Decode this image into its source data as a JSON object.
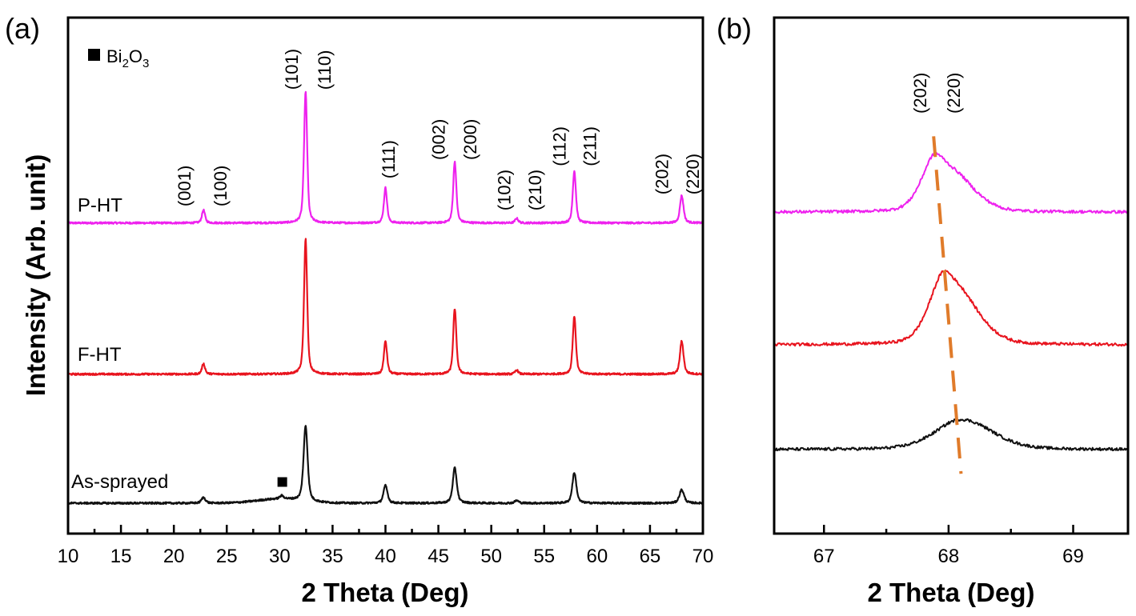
{
  "chart_data": [
    {
      "panel_label": "(a)",
      "type": "line",
      "xlabel": "2 Theta (Deg)",
      "ylabel": "Intensity (Arb. unit)",
      "xlim": [
        10,
        70
      ],
      "ylim": [
        0,
        100
      ],
      "xticks_major": [
        10,
        15,
        20,
        25,
        30,
        35,
        40,
        45,
        50,
        55,
        60,
        65,
        70
      ],
      "xticks_minor": [
        12.5,
        17.5,
        22.5,
        27.5,
        32.5,
        37.5,
        42.5,
        47.5,
        52.5,
        57.5,
        62.5,
        67.5
      ],
      "yticks": [],
      "grid": false,
      "legend": {
        "position": "top-left",
        "marker": "square",
        "label_main": "Bi",
        "sub1": "2",
        "label_mid": "O",
        "sub2": "3"
      },
      "series": [
        {
          "name": "P-HT",
          "color": "#ee22ee",
          "baseline": 60.2,
          "fwhm": 0.35,
          "label": {
            "text": "P-HT",
            "x": 10.9,
            "y": 62.4
          },
          "peaks": [
            {
              "x": 22.8,
              "h": 2.5
            },
            {
              "x": 32.45,
              "h": 25.4
            },
            {
              "x": 40.0,
              "h": 6.8
            },
            {
              "x": 46.55,
              "h": 11.9
            },
            {
              "x": 52.4,
              "h": 0.9
            },
            {
              "x": 57.85,
              "h": 10.1
            },
            {
              "x": 68.0,
              "h": 5.3
            }
          ],
          "humps": []
        },
        {
          "name": "F-HT",
          "color": "#e8141e",
          "baseline": 30.9,
          "fwhm": 0.35,
          "label": {
            "text": "F-HT",
            "x": 10.9,
            "y": 33.5
          },
          "peaks": [
            {
              "x": 22.8,
              "h": 2.0
            },
            {
              "x": 32.45,
              "h": 26.2
            },
            {
              "x": 40.0,
              "h": 6.4
            },
            {
              "x": 46.55,
              "h": 12.7
            },
            {
              "x": 52.4,
              "h": 0.8
            },
            {
              "x": 57.85,
              "h": 11.2
            },
            {
              "x": 68.0,
              "h": 6.4
            }
          ],
          "humps": []
        },
        {
          "name": "As-sprayed",
          "color": "#111111",
          "baseline": 5.9,
          "fwhm": 0.45,
          "label": {
            "text": "As-sprayed",
            "x": 10.3,
            "y": 8.8
          },
          "peaks": [
            {
              "x": 22.8,
              "h": 1.1
            },
            {
              "x": 30.2,
              "h": 0.6
            },
            {
              "x": 32.45,
              "h": 14.6
            },
            {
              "x": 40.0,
              "h": 3.4
            },
            {
              "x": 46.55,
              "h": 6.8
            },
            {
              "x": 52.4,
              "h": 0.5
            },
            {
              "x": 57.85,
              "h": 5.9
            },
            {
              "x": 68.0,
              "h": 2.6
            }
          ],
          "humps": [
            {
              "x": 30.0,
              "h": 0.8,
              "w": 5
            }
          ]
        }
      ],
      "markers": [
        {
          "type": "square",
          "x": 30.25,
          "y": 10.0,
          "meaning": "Bi2O3"
        }
      ],
      "annotations": [
        {
          "text": "(001)",
          "x": 20.97,
          "y": 63.4
        },
        {
          "text": "(100)",
          "x": 24.37,
          "y": 63.4
        },
        {
          "text": "(101)",
          "x": 31.1,
          "y": 86.0
        },
        {
          "text": "(110)",
          "x": 34.2,
          "y": 86.0
        },
        {
          "text": "(111)",
          "x": 40.26,
          "y": 68.8
        },
        {
          "text": "(002)",
          "x": 45.0,
          "y": 72.4
        },
        {
          "text": "(200)",
          "x": 47.97,
          "y": 72.4
        },
        {
          "text": "(102)",
          "x": 51.2,
          "y": 62.6
        },
        {
          "text": "(210)",
          "x": 54.1,
          "y": 62.6
        },
        {
          "text": "(112)",
          "x": 56.4,
          "y": 71.2
        },
        {
          "text": "(211)",
          "x": 59.3,
          "y": 71.2
        },
        {
          "text": "(202)",
          "x": 66.1,
          "y": 65.7
        },
        {
          "text": "(220)",
          "x": 69.0,
          "y": 65.7
        }
      ]
    },
    {
      "panel_label": "(b)",
      "type": "line",
      "xlabel": "2 Theta (Deg)",
      "ylabel": "",
      "xlim": [
        66.6,
        69.44
      ],
      "ylim": [
        0,
        100
      ],
      "xticks_major": [
        67,
        68,
        69
      ],
      "xticks_minor": [
        67.5,
        68.5
      ],
      "yticks": [],
      "grid": false,
      "series": [
        {
          "name": "P-HT",
          "color": "#ee22ee",
          "baseline": 62.3,
          "peaks": [
            {
              "x": 67.88,
              "h": 8.6,
              "w": 0.2
            },
            {
              "x": 68.08,
              "h": 6.0,
              "w": 0.3
            }
          ]
        },
        {
          "name": "F-HT",
          "color": "#e8141e",
          "baseline": 36.6,
          "peaks": [
            {
              "x": 67.95,
              "h": 10.8,
              "w": 0.22
            },
            {
              "x": 68.14,
              "h": 7.0,
              "w": 0.3
            }
          ]
        },
        {
          "name": "As-sprayed",
          "color": "#111111",
          "baseline": 16.3,
          "peaks": [
            {
              "x": 68.06,
              "h": 4.4,
              "w": 0.38
            },
            {
              "x": 68.26,
              "h": 2.2,
              "w": 0.4
            }
          ]
        }
      ],
      "guide_line": {
        "style": "dashed",
        "color": "#e07b2a",
        "from": [
          67.88,
          77.0
        ],
        "to": [
          68.1,
          11.6
        ]
      },
      "annotations": [
        {
          "text": "(202)",
          "x": 67.77,
          "y": 81.4
        },
        {
          "text": "(220)",
          "x": 68.04,
          "y": 81.4
        }
      ]
    }
  ]
}
